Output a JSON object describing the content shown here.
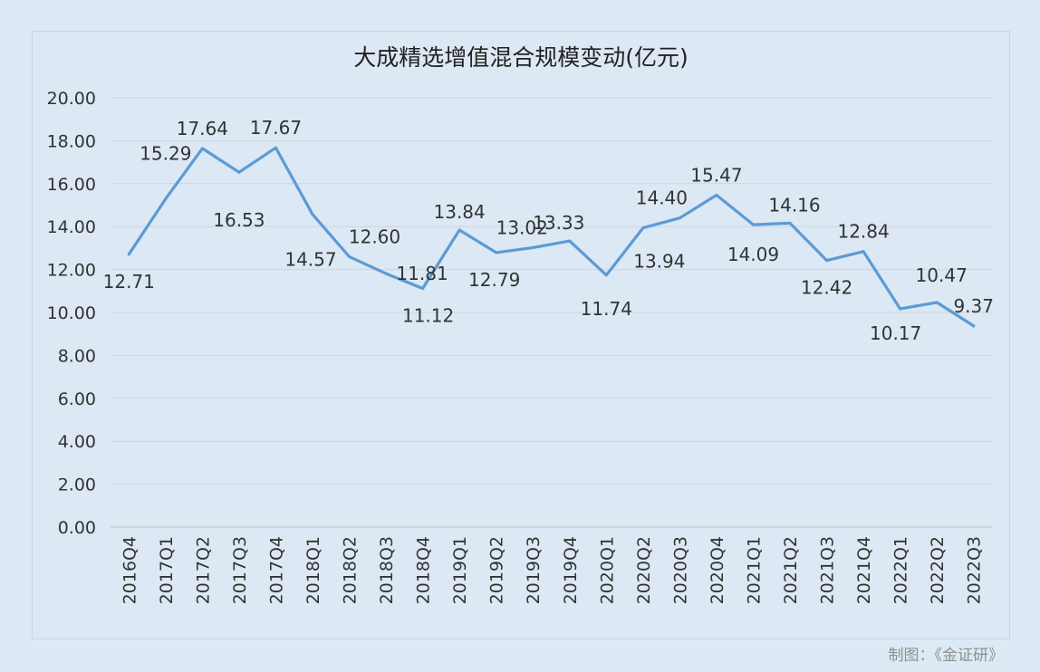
{
  "credit": "制图：《金证研》",
  "chart_data": {
    "type": "line",
    "title": "大成精选增值混合规模变动(亿元)",
    "xlabel": "",
    "ylabel": "",
    "ylim": [
      0,
      20
    ],
    "yticks": [
      "0.00",
      "2.00",
      "4.00",
      "6.00",
      "8.00",
      "10.00",
      "12.00",
      "14.00",
      "16.00",
      "18.00",
      "20.00"
    ],
    "grid": true,
    "legend": "none",
    "line_color": "#5b9bd5",
    "categories": [
      "2016Q4",
      "2017Q1",
      "2017Q2",
      "2017Q3",
      "2017Q4",
      "2018Q1",
      "2018Q2",
      "2018Q3",
      "2018Q4",
      "2019Q1",
      "2019Q2",
      "2019Q3",
      "2019Q4",
      "2020Q1",
      "2020Q2",
      "2020Q3",
      "2020Q4",
      "2021Q1",
      "2021Q2",
      "2021Q3",
      "2021Q4",
      "2022Q1",
      "2022Q2",
      "2022Q3"
    ],
    "values": [
      12.71,
      15.29,
      17.64,
      16.53,
      17.67,
      14.57,
      12.6,
      11.81,
      11.12,
      13.84,
      12.79,
      13.02,
      13.33,
      11.74,
      13.94,
      14.4,
      15.47,
      14.09,
      14.16,
      12.42,
      12.84,
      10.17,
      10.47,
      9.37
    ],
    "data_labels": [
      "12.71",
      "15.29",
      "17.64",
      "16.53",
      "17.67",
      "14.57",
      "12.60",
      "11.81",
      "11.12",
      "13.84",
      "12.79",
      "13.02",
      "13.33",
      "11.74",
      "13.94",
      "14.40",
      "15.47",
      "14.09",
      "14.16",
      "12.42",
      "12.84",
      "10.17",
      "10.47",
      "9.37"
    ]
  }
}
